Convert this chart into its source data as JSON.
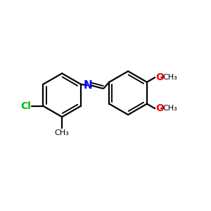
{
  "bg_color": "#ffffff",
  "bond_color": "#000000",
  "cl_color": "#00bb00",
  "n_color": "#0000ff",
  "o_color": "#ff0000",
  "line_width": 1.6,
  "dbo": 0.07,
  "figsize": [
    3.0,
    3.0
  ],
  "dpi": 100,
  "xlim": [
    0,
    10
  ],
  "ylim": [
    0,
    10
  ]
}
